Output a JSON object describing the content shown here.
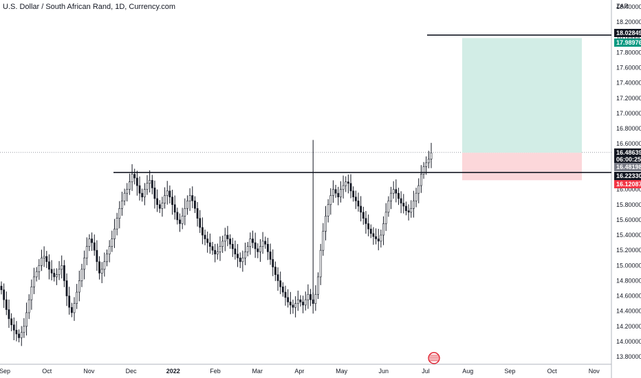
{
  "header": {
    "title": "U.S. Dollar / South African Rand, 1D, Currency.com"
  },
  "chart_data": {
    "type": "candlestick",
    "title": "U.S. Dollar / South African Rand, 1D, Currency.com",
    "currency_label": "ZAR",
    "y_ticks": [
      "18.40000",
      "18.20000",
      "18.00000",
      "17.80000",
      "17.60000",
      "17.40000",
      "17.20000",
      "17.00000",
      "16.80000",
      "16.60000",
      "16.40000",
      "16.20000",
      "16.00000",
      "15.80000",
      "15.60000",
      "15.40000",
      "15.20000",
      "15.00000",
      "14.80000",
      "14.60000",
      "14.40000",
      "14.20000",
      "14.00000",
      "13.80000"
    ],
    "ylim": [
      13.72,
      18.49
    ],
    "x_ticks": [
      "Sep",
      "Oct",
      "Nov",
      "Dec",
      "2022",
      "Feb",
      "Mar",
      "Apr",
      "May",
      "Jun",
      "Jul",
      "Aug",
      "Sep",
      "Oct",
      "Nov"
    ],
    "grid": false,
    "series": [
      {
        "values": [
          14.68,
          14.55,
          14.42,
          14.3,
          14.22,
          14.15,
          14.1,
          14.05,
          14.12,
          14.2,
          14.38,
          14.55,
          14.72,
          14.85,
          14.92,
          15.0,
          15.1,
          15.12,
          15.05,
          14.95,
          14.9,
          14.85,
          14.88,
          14.95,
          15.0,
          14.8,
          14.6,
          14.45,
          14.38,
          14.5,
          14.65,
          14.8,
          14.95,
          15.1,
          15.25,
          15.35,
          15.3,
          15.2,
          15.05,
          14.9,
          14.95,
          15.05,
          15.15,
          15.25,
          15.35,
          15.48,
          15.62,
          15.75,
          15.85,
          15.95,
          16.0,
          16.1,
          16.2,
          16.15,
          16.05,
          15.95,
          15.9,
          16.0,
          16.08,
          16.12,
          16.02,
          15.88,
          15.8,
          15.75,
          15.82,
          15.92,
          15.98,
          15.9,
          15.8,
          15.7,
          15.6,
          15.55,
          15.65,
          15.75,
          15.85,
          15.92,
          15.85,
          15.75,
          15.62,
          15.5,
          15.4,
          15.35,
          15.3,
          15.25,
          15.2,
          15.15,
          15.18,
          15.25,
          15.32,
          15.4,
          15.35,
          15.28,
          15.22,
          15.15,
          15.1,
          15.05,
          15.1,
          15.18,
          15.25,
          15.35,
          15.3,
          15.22,
          15.18,
          15.25,
          15.32,
          15.28,
          15.18,
          15.08,
          14.98,
          14.88,
          14.8,
          14.72,
          14.65,
          14.58,
          14.52,
          14.48,
          14.45,
          14.5,
          14.55,
          14.52,
          14.48,
          14.55,
          14.62,
          14.55,
          14.5,
          14.62,
          14.85,
          15.2,
          15.45,
          15.65,
          15.8,
          15.92,
          16.0,
          15.95,
          15.9,
          16.0,
          16.05,
          16.1,
          16.08,
          15.98,
          15.9,
          15.85,
          15.78,
          15.7,
          15.62,
          15.55,
          15.48,
          15.42,
          15.38,
          15.35,
          15.32,
          15.4,
          15.55,
          15.7,
          15.85,
          15.95,
          16.0,
          15.95,
          15.88,
          15.82,
          15.78,
          15.72,
          15.7,
          15.75,
          15.85,
          15.95,
          16.05,
          16.2,
          16.3,
          16.35,
          16.4,
          16.48
        ]
      }
    ],
    "horizontal_lines": [
      {
        "value": 18.02849
      },
      {
        "value": 16.2233
      }
    ],
    "position_box": {
      "entry": 16.48198,
      "stop": 16.12087,
      "target": 17.98976
    },
    "price_tags": [
      {
        "label": "18.02849",
        "value": 18.02849,
        "color": "#131722"
      },
      {
        "label": "17.98976",
        "value": 17.98976,
        "color": "#089981"
      },
      {
        "label": "16.48639",
        "value": 16.48639,
        "color": "#131722"
      },
      {
        "label": "06:00:25",
        "value": 16.4,
        "color": "#131722"
      },
      {
        "label": "16.48198",
        "value": 16.3,
        "color": "#787b86"
      },
      {
        "label": "16.22330",
        "value": 16.2233,
        "color": "#131722"
      },
      {
        "label": "16.12087",
        "value": 16.12087,
        "color": "#f23645"
      }
    ],
    "colors": {
      "up": "#089981",
      "down": "#131722",
      "candle": "#131722",
      "target_zone": "#d2ede6",
      "stop_zone": "#fcd7da",
      "current_price_line": "#9598a1"
    }
  }
}
